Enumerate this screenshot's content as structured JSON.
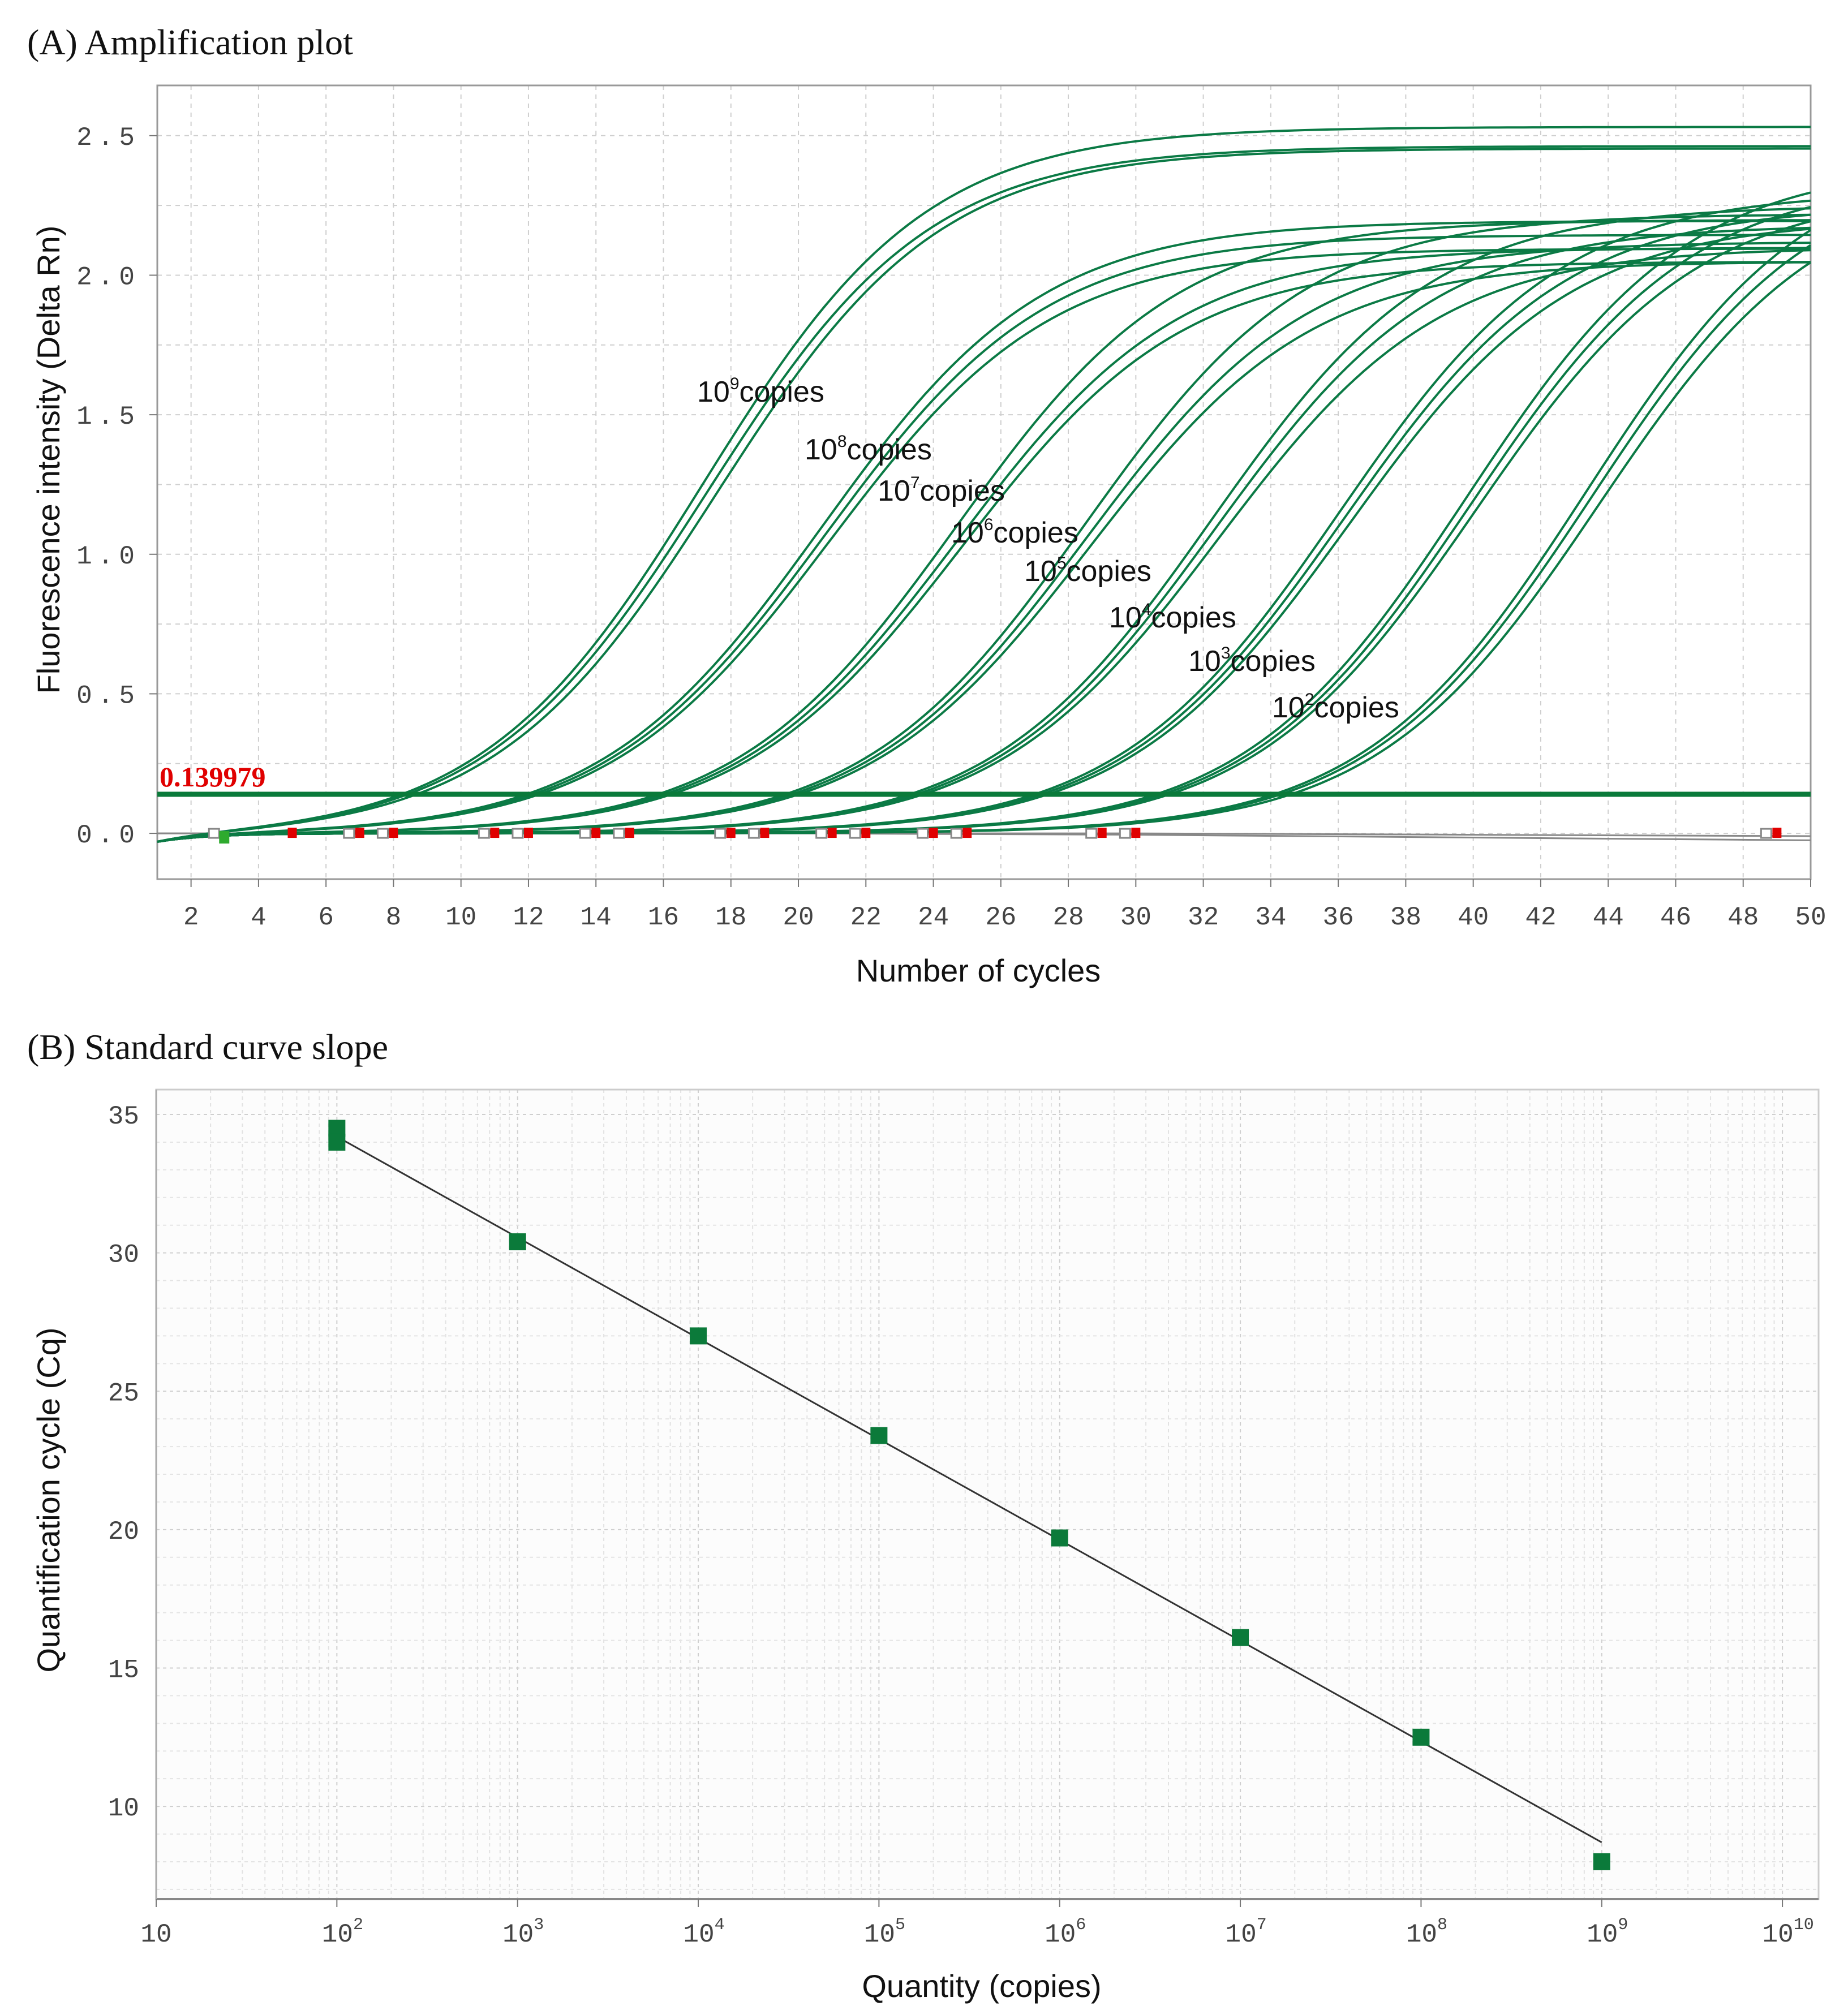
{
  "chart_data": [
    {
      "type": "line",
      "panel_title": "(A) Amplification plot",
      "xlabel": "Number of cycles",
      "ylabel": "Fluorescence intensity (Delta Rn)",
      "xlim": [
        1,
        50
      ],
      "ylim": [
        -0.164,
        2.68
      ],
      "xticks": [
        2,
        4,
        6,
        8,
        10,
        12,
        14,
        16,
        18,
        20,
        22,
        24,
        26,
        28,
        30,
        32,
        34,
        36,
        38,
        40,
        42,
        44,
        46,
        48,
        50
      ],
      "yticks": [
        {
          "value": 0.0,
          "label": "0.0"
        },
        {
          "value": 0.5,
          "label": "0.5"
        },
        {
          "value": 1.0,
          "label": "1.0"
        },
        {
          "value": 1.5,
          "label": "1.5"
        },
        {
          "value": 2.0,
          "label": "2.0"
        },
        {
          "value": 2.5,
          "label": "2.5"
        }
      ],
      "grid": true,
      "threshold": {
        "value": 0.139979,
        "label": "0.139979",
        "color": "#0a7a3a",
        "label_color": "#e00000"
      },
      "curve_color": "#0b7a45",
      "series": [
        {
          "name": "10^9 copies",
          "base": "10",
          "exp": "9",
          "suffix": "copies",
          "ct": [
            7.8,
            8.0,
            8.3
          ],
          "plateau": [
            2.55,
            2.48,
            2.47
          ]
        },
        {
          "name": "10^8 copies",
          "base": "10",
          "exp": "8",
          "suffix": "copies",
          "ct": [
            11.8,
            12.0,
            12.2
          ],
          "plateau": [
            2.2,
            2.15,
            2.1
          ]
        },
        {
          "name": "10^7 copies",
          "base": "10",
          "exp": "7",
          "suffix": "copies",
          "ct": [
            15.8,
            16.0,
            16.2
          ],
          "plateau": [
            2.2,
            2.1,
            2.05
          ]
        },
        {
          "name": "10^6 copies",
          "base": "10",
          "exp": "6",
          "suffix": "copies",
          "ct": [
            19.6,
            19.8,
            20.0
          ],
          "plateau": [
            2.22,
            2.12,
            2.05
          ]
        },
        {
          "name": "10^5 copies",
          "base": "10",
          "exp": "5",
          "suffix": "copies",
          "ct": [
            23.3,
            23.5,
            23.7
          ],
          "plateau": [
            2.25,
            2.18,
            2.1
          ]
        },
        {
          "name": "10^4 copies",
          "base": "10",
          "exp": "4",
          "suffix": "copies",
          "ct": [
            27.0,
            27.2,
            27.4
          ],
          "plateau": [
            2.3,
            2.25,
            2.2
          ]
        },
        {
          "name": "10^3 copies",
          "base": "10",
          "exp": "3",
          "suffix": "copies",
          "ct": [
            30.6,
            30.8,
            31.0
          ],
          "plateau": [
            2.4,
            2.35,
            2.3
          ]
        },
        {
          "name": "10^2 copies",
          "base": "10",
          "exp": "2",
          "suffix": "copies",
          "ct": [
            34.1,
            34.3,
            34.6
          ],
          "plateau": [
            2.45,
            2.4,
            2.35
          ]
        }
      ],
      "ntc_series": [
        {
          "name": "NTC",
          "values_at": [
            [
              1,
              0.0
            ],
            [
              20,
              0.0
            ],
            [
              30,
              -0.005
            ],
            [
              50,
              -0.025
            ]
          ]
        },
        {
          "name": "NTC",
          "values_at": [
            [
              1,
              0.0
            ],
            [
              20,
              0.0
            ],
            [
              30,
              0.0
            ],
            [
              50,
              -0.01
            ]
          ]
        }
      ],
      "markers": {
        "red": [
          5,
          7,
          8,
          11,
          12,
          14,
          15,
          18,
          19,
          21,
          22,
          24,
          25,
          29,
          30,
          49
        ],
        "gray": [
          3,
          7,
          8,
          11,
          12,
          14,
          15,
          18,
          19,
          21,
          22,
          24,
          25,
          29,
          30,
          49
        ],
        "green": [
          3
        ],
        "red_color": "#e00000",
        "green_color": "#2eaa2e"
      }
    },
    {
      "type": "scatter",
      "panel_title": "(B) Standard curve slope",
      "xlabel": "Quantity (copies)",
      "ylabel": "Quantification cycle (Cq)",
      "xscale": "log",
      "xlim_log10": [
        1,
        10.2
      ],
      "ylim": [
        6.65,
        35.9
      ],
      "xticks": [
        {
          "log": 1,
          "base": "10",
          "exp": ""
        },
        {
          "log": 2,
          "base": "10",
          "exp": "2"
        },
        {
          "log": 3,
          "base": "10",
          "exp": "3"
        },
        {
          "log": 4,
          "base": "10",
          "exp": "4"
        },
        {
          "log": 5,
          "base": "10",
          "exp": "5"
        },
        {
          "log": 6,
          "base": "10",
          "exp": "6"
        },
        {
          "log": 7,
          "base": "10",
          "exp": "7"
        },
        {
          "log": 8,
          "base": "10",
          "exp": "8"
        },
        {
          "log": 9,
          "base": "10",
          "exp": "9"
        },
        {
          "log": 10,
          "base": "10",
          "exp": "10"
        }
      ],
      "yticks": [
        10,
        15,
        20,
        25,
        30,
        35
      ],
      "grid": true,
      "marker_color": "#0b7a3a",
      "points": [
        {
          "quantity_log10": 2,
          "cq": 34.5
        },
        {
          "quantity_log10": 2,
          "cq": 34.0
        },
        {
          "quantity_log10": 3,
          "cq": 30.4
        },
        {
          "quantity_log10": 4,
          "cq": 27.0
        },
        {
          "quantity_log10": 5,
          "cq": 23.4
        },
        {
          "quantity_log10": 6,
          "cq": 19.7
        },
        {
          "quantity_log10": 7,
          "cq": 16.1
        },
        {
          "quantity_log10": 8,
          "cq": 12.5
        },
        {
          "quantity_log10": 9,
          "cq": 8.0
        }
      ],
      "fit_line": {
        "from": {
          "quantity_log10": 2,
          "cq": 34.2
        },
        "to": {
          "quantity_log10": 9,
          "cq": 8.7
        }
      }
    }
  ]
}
